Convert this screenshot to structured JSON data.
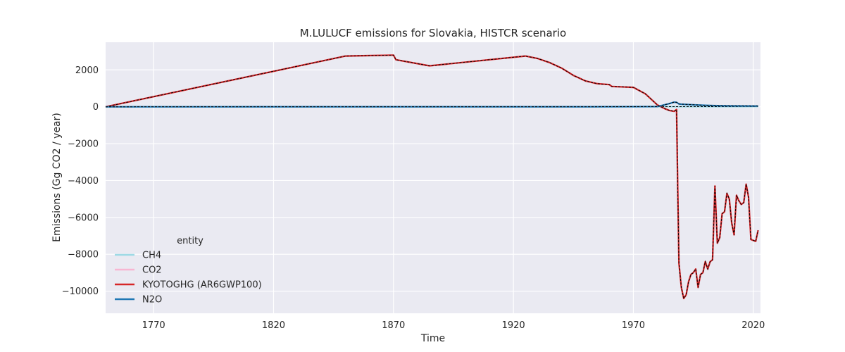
{
  "chart_data": {
    "type": "line",
    "title": "M.LULUCF emissions for Slovakia, HISTCR scenario",
    "xlabel": "Time",
    "ylabel": "Emissions (Gg CO2 / year)",
    "xlim": [
      1750,
      2023
    ],
    "ylim": [
      -11200,
      3500
    ],
    "xticks": [
      1770,
      1820,
      1870,
      1920,
      1970,
      2020
    ],
    "yticks": [
      -10000,
      -8000,
      -6000,
      -4000,
      -2000,
      0,
      2000
    ],
    "ytick_labels": [
      "−10000",
      "−8000",
      "−6000",
      "−4000",
      "−2000",
      "0",
      "2000"
    ],
    "grid": true,
    "legend": {
      "title": "entity",
      "placement": "lower-left"
    },
    "series": [
      {
        "name": "CH4",
        "color": "#9edae5",
        "x": [
          1750,
          1850,
          1900,
          1950,
          1980,
          2000,
          2022
        ],
        "y": [
          0,
          2,
          3,
          4,
          6,
          8,
          10
        ]
      },
      {
        "name": "CO2",
        "color": "#f7b6d2",
        "x": [
          1750,
          1850,
          1870,
          1871,
          1885,
          1925,
          1930,
          1935,
          1940,
          1945,
          1950,
          1955,
          1960,
          1961,
          1970,
          1975,
          1980,
          1983,
          1985,
          1987,
          1988,
          1988.5,
          1989,
          1990,
          1991,
          1992,
          1993,
          1994,
          1995,
          1996,
          1997,
          1998,
          1999,
          2000,
          2001,
          2002,
          2003,
          2004,
          2005,
          2006,
          2007,
          2008,
          2009,
          2010,
          2011,
          2012,
          2013,
          2014,
          2015,
          2016,
          2017,
          2018,
          2019,
          2020,
          2021,
          2022
        ],
        "y": [
          0,
          2750,
          2800,
          2550,
          2220,
          2750,
          2620,
          2400,
          2100,
          1700,
          1400,
          1250,
          1200,
          1100,
          1050,
          700,
          100,
          -100,
          -200,
          -250,
          -150,
          -4500,
          -8500,
          -9800,
          -10400,
          -10200,
          -9500,
          -9100,
          -9000,
          -8800,
          -9800,
          -9100,
          -9000,
          -8400,
          -8800,
          -8400,
          -8300,
          -4300,
          -7400,
          -7100,
          -5800,
          -5700,
          -4700,
          -5000,
          -6300,
          -6950,
          -4800,
          -5100,
          -5300,
          -5200,
          -4200,
          -4900,
          -7200,
          -7250,
          -7300,
          -6700
        ]
      },
      {
        "name": "KYOTOGHG (AR6GWP100)",
        "color": "#d62728",
        "x": [
          1750,
          1850,
          1870,
          1871,
          1885,
          1925,
          1930,
          1935,
          1940,
          1945,
          1950,
          1955,
          1960,
          1961,
          1970,
          1975,
          1980,
          1983,
          1985,
          1987,
          1988,
          1988.5,
          1989,
          1990,
          1991,
          1992,
          1993,
          1994,
          1995,
          1996,
          1997,
          1998,
          1999,
          2000,
          2001,
          2002,
          2003,
          2004,
          2005,
          2006,
          2007,
          2008,
          2009,
          2010,
          2011,
          2012,
          2013,
          2014,
          2015,
          2016,
          2017,
          2018,
          2019,
          2020,
          2021,
          2022
        ],
        "y": [
          0,
          2752,
          2802,
          2552,
          2222,
          2752,
          2622,
          2402,
          2102,
          1702,
          1402,
          1252,
          1202,
          1102,
          1052,
          702,
          102,
          -98,
          -198,
          -248,
          -148,
          -4498,
          -8498,
          -9798,
          -10398,
          -10198,
          -9498,
          -9098,
          -8998,
          -8798,
          -9798,
          -9098,
          -8998,
          -8398,
          -8798,
          -8398,
          -8298,
          -4298,
          -7398,
          -7098,
          -5798,
          -5698,
          -4698,
          -4998,
          -6298,
          -6948,
          -4798,
          -5098,
          -5298,
          -5198,
          -4198,
          -4898,
          -7198,
          -7248,
          -7298,
          -6698
        ]
      },
      {
        "name": "N2O",
        "color": "#1f77b4",
        "x": [
          1750,
          1850,
          1900,
          1950,
          1980,
          1985,
          1987,
          1988,
          1989,
          1990,
          1995,
          2000,
          2005,
          2010,
          2015,
          2020,
          2022
        ],
        "y": [
          0,
          1,
          2,
          3,
          10,
          170,
          250,
          240,
          150,
          140,
          110,
          80,
          60,
          50,
          45,
          40,
          40
        ]
      }
    ]
  }
}
